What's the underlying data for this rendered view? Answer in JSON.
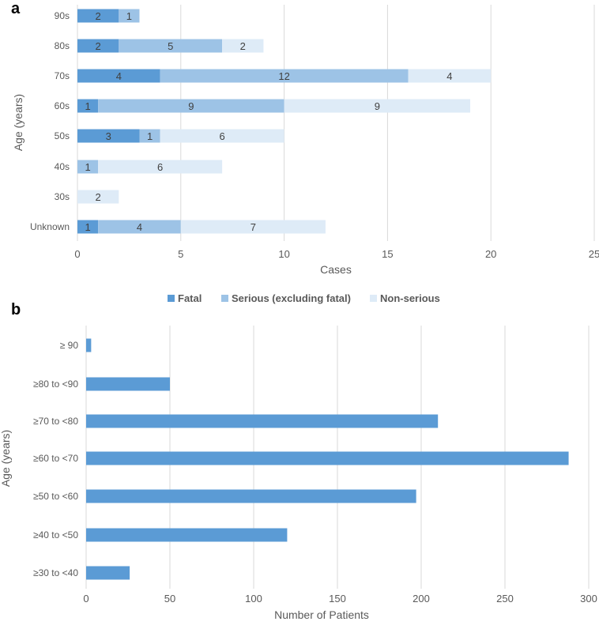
{
  "chart_data": [
    {
      "panel_label": "a",
      "type": "bar",
      "orientation": "horizontal",
      "stacked": true,
      "categories": [
        "90s",
        "80s",
        "70s",
        "60s",
        "50s",
        "40s",
        "30s",
        "Unknown"
      ],
      "series": [
        {
          "name": "Fatal",
          "color": "#5B9BD5",
          "values": [
            2,
            2,
            4,
            1,
            3,
            0,
            0,
            1
          ]
        },
        {
          "name": "Serious (excluding fatal)",
          "color": "#9DC3E6",
          "values": [
            1,
            5,
            12,
            9,
            1,
            1,
            0,
            4
          ]
        },
        {
          "name": "Non-serious",
          "color": "#DEEBF7",
          "values": [
            0,
            2,
            4,
            9,
            6,
            6,
            2,
            7
          ]
        }
      ],
      "xlabel": "Cases",
      "ylabel": "Age (years)",
      "xlim": [
        0,
        25
      ],
      "xticks": [
        "0",
        "5",
        "10",
        "15",
        "20",
        "25"
      ],
      "grid": true,
      "legend": "bottom"
    },
    {
      "panel_label": "b",
      "type": "bar",
      "orientation": "horizontal",
      "categories": [
        "≥ 90",
        "≥80 to <90",
        "≥70 to <80",
        "≥60 to <70",
        "≥50 to <60",
        "≥40 to <50",
        "≥30 to <40"
      ],
      "series": [
        {
          "name": "Patients",
          "color": "#5B9BD5",
          "values": [
            3,
            50,
            210,
            288,
            197,
            120,
            26
          ]
        }
      ],
      "xlabel": "Number  of Patients",
      "ylabel": "Age (years)",
      "xlim": [
        0,
        300
      ],
      "xticks": [
        "0",
        "50",
        "100",
        "150",
        "200",
        "250",
        "300"
      ],
      "grid": true
    }
  ]
}
